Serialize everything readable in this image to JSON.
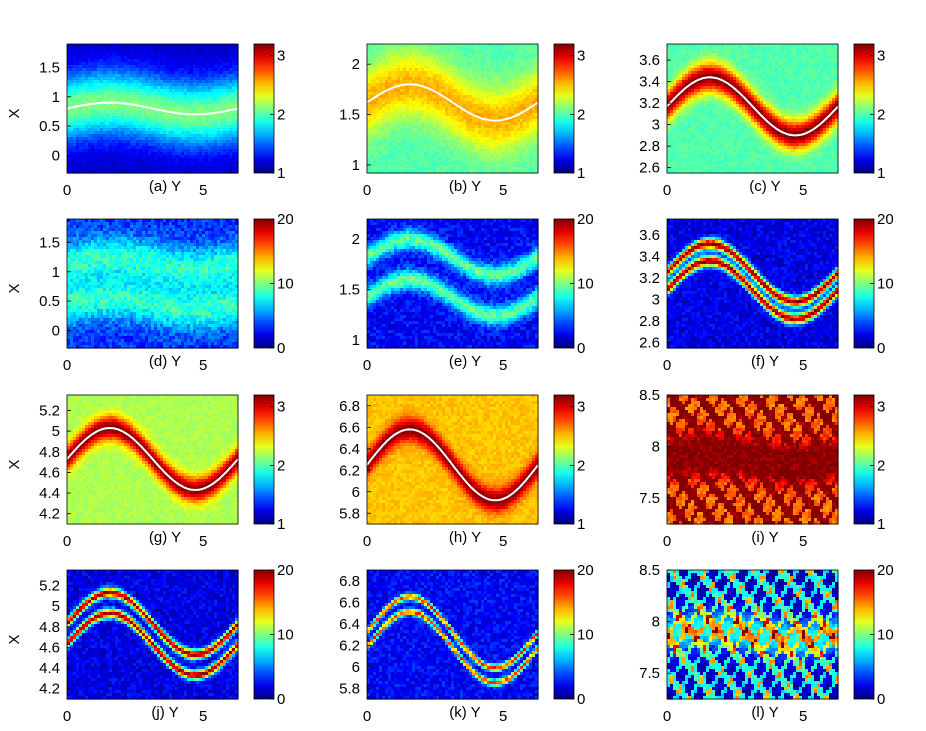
{
  "chart_data": [
    {
      "id": "a",
      "type": "heatmap",
      "caption": "(a) Y",
      "xlabel": "Y",
      "ylabel": "X",
      "x_ticks": [
        "0",
        "5"
      ],
      "xlim": [
        0,
        6.28
      ],
      "ylim": [
        -0.3,
        1.9
      ],
      "y_ticks": [
        0,
        0.5,
        1,
        1.5
      ],
      "y_tick_labels": [
        "0",
        "0.5",
        "1",
        "1.5"
      ],
      "color_range": [
        1,
        3.2
      ],
      "colorbar_ticks": [
        "1",
        "2",
        "3"
      ],
      "ridge": {
        "center": 0.8,
        "amp": 0.1,
        "width": 0.55,
        "peak": 2.1,
        "base": 1.15
      },
      "curve": true
    },
    {
      "id": "b",
      "type": "heatmap",
      "caption": "(b) Y",
      "xlabel": "Y",
      "ylabel": "",
      "x_ticks": [
        "0",
        "5"
      ],
      "xlim": [
        0,
        6.28
      ],
      "ylim": [
        0.92,
        2.2
      ],
      "y_ticks": [
        1,
        1.5,
        2
      ],
      "y_tick_labels": [
        "1",
        "1.5",
        "2"
      ],
      "color_range": [
        1,
        3.2
      ],
      "colorbar_ticks": [
        "1",
        "2",
        "3"
      ],
      "ridge": {
        "center": 1.62,
        "amp": 0.18,
        "width": 0.32,
        "peak": 2.55,
        "base": 2.0
      },
      "curve": true
    },
    {
      "id": "c",
      "type": "heatmap",
      "caption": "(c) Y",
      "xlabel": "Y",
      "ylabel": "",
      "x_ticks": [
        "0",
        "5"
      ],
      "xlim": [
        0,
        6.28
      ],
      "ylim": [
        2.55,
        3.75
      ],
      "y_ticks": [
        2.6,
        2.8,
        3,
        3.2,
        3.4,
        3.6
      ],
      "y_tick_labels": [
        "2.6",
        "2.8",
        "3",
        "3.2",
        "3.4",
        "3.6"
      ],
      "color_range": [
        1,
        3.2
      ],
      "colorbar_ticks": [
        "1",
        "2",
        "3"
      ],
      "ridge": {
        "center": 3.17,
        "amp": 0.27,
        "width": 0.14,
        "peak": 3.2,
        "base": 2.0
      },
      "curve": true
    },
    {
      "id": "d",
      "type": "heatmap",
      "caption": "(d) Y",
      "xlabel": "Y",
      "ylabel": "X",
      "x_ticks": [
        "0",
        "5"
      ],
      "xlim": [
        0,
        6.28
      ],
      "ylim": [
        -0.3,
        1.9
      ],
      "y_ticks": [
        0,
        0.5,
        1,
        1.5
      ],
      "y_tick_labels": [
        "0",
        "0.5",
        "1",
        "1.5"
      ],
      "color_range": [
        0,
        20
      ],
      "colorbar_ticks": [
        "0",
        "10",
        "20"
      ],
      "ridge": {
        "center": 0.8,
        "amp": 0.1,
        "width": 0.35,
        "peak": 8,
        "base": 3,
        "double": true,
        "sep": 0.35
      },
      "curve": false
    },
    {
      "id": "e",
      "type": "heatmap",
      "caption": "(e) Y",
      "xlabel": "Y",
      "ylabel": "",
      "x_ticks": [
        "0",
        "5"
      ],
      "xlim": [
        0,
        6.28
      ],
      "ylim": [
        0.92,
        2.2
      ],
      "y_ticks": [
        1,
        1.5,
        2
      ],
      "y_tick_labels": [
        "1",
        "1.5",
        "2"
      ],
      "color_range": [
        0,
        20
      ],
      "colorbar_ticks": [
        "0",
        "10",
        "20"
      ],
      "ridge": {
        "center": 1.62,
        "amp": 0.18,
        "width": 0.1,
        "peak": 9,
        "base": 2,
        "double": true,
        "sep": 0.2
      },
      "curve": false
    },
    {
      "id": "f",
      "type": "heatmap",
      "caption": "(f) Y",
      "xlabel": "Y",
      "ylabel": "",
      "x_ticks": [
        "0",
        "5"
      ],
      "xlim": [
        0,
        6.28
      ],
      "ylim": [
        2.55,
        3.75
      ],
      "y_ticks": [
        2.6,
        2.8,
        3,
        3.2,
        3.4,
        3.6
      ],
      "y_tick_labels": [
        "2.6",
        "2.8",
        "3",
        "3.2",
        "3.4",
        "3.6"
      ],
      "color_range": [
        0,
        20
      ],
      "colorbar_ticks": [
        "0",
        "10",
        "20"
      ],
      "ridge": {
        "center": 3.17,
        "amp": 0.27,
        "width": 0.05,
        "peak": 19,
        "base": 1.5,
        "double": true,
        "sep": 0.08
      },
      "curve": false
    },
    {
      "id": "g",
      "type": "heatmap",
      "caption": "(g) Y",
      "xlabel": "Y",
      "ylabel": "X",
      "x_ticks": [
        "0",
        "5"
      ],
      "xlim": [
        0,
        6.28
      ],
      "ylim": [
        4.1,
        5.35
      ],
      "y_ticks": [
        4.2,
        4.4,
        4.6,
        4.8,
        5,
        5.2
      ],
      "y_tick_labels": [
        "4.2",
        "4.4",
        "4.6",
        "4.8",
        "5",
        "5.2"
      ],
      "color_range": [
        1,
        3.2
      ],
      "colorbar_ticks": [
        "1",
        "2",
        "3"
      ],
      "ridge": {
        "center": 4.73,
        "amp": 0.3,
        "width": 0.12,
        "peak": 3.2,
        "base": 2.2
      },
      "curve": true
    },
    {
      "id": "h",
      "type": "heatmap",
      "caption": "(h) Y",
      "xlabel": "Y",
      "ylabel": "",
      "x_ticks": [
        "0",
        "5"
      ],
      "xlim": [
        0,
        6.28
      ],
      "ylim": [
        5.7,
        6.9
      ],
      "y_ticks": [
        5.8,
        6,
        6.2,
        6.4,
        6.6,
        6.8
      ],
      "y_tick_labels": [
        "5.8",
        "6",
        "6.2",
        "6.4",
        "6.6",
        "6.8"
      ],
      "color_range": [
        1,
        3.2
      ],
      "colorbar_ticks": [
        "1",
        "2",
        "3"
      ],
      "ridge": {
        "center": 6.25,
        "amp": 0.33,
        "width": 0.11,
        "peak": 3.2,
        "base": 2.5
      },
      "curve": true
    },
    {
      "id": "i",
      "type": "heatmap",
      "caption": "(i) Y",
      "xlabel": "Y",
      "ylabel": "",
      "x_ticks": [
        "0",
        "5"
      ],
      "xlim": [
        0,
        6.28
      ],
      "ylim": [
        7.25,
        8.5
      ],
      "y_ticks": [
        7.5,
        8,
        8.5
      ],
      "y_tick_labels": [
        "7.5",
        "8",
        "8.5"
      ],
      "color_range": [
        1,
        3.2
      ],
      "colorbar_ticks": [
        "1",
        "2",
        "3"
      ],
      "ridge": {
        "center": 7.88,
        "amp": 0.05,
        "width": 0.12,
        "peak": 3.2,
        "base": 2.8,
        "chaotic": true
      },
      "curve": false
    },
    {
      "id": "j",
      "type": "heatmap",
      "caption": "(j) Y",
      "xlabel": "Y",
      "ylabel": "X",
      "x_ticks": [
        "0",
        "5"
      ],
      "xlim": [
        0,
        6.28
      ],
      "ylim": [
        4.1,
        5.35
      ],
      "y_ticks": [
        4.2,
        4.4,
        4.6,
        4.8,
        5,
        5.2
      ],
      "y_tick_labels": [
        "4.2",
        "4.4",
        "4.6",
        "4.8",
        "5",
        "5.2"
      ],
      "color_range": [
        0,
        20
      ],
      "colorbar_ticks": [
        "0",
        "10",
        "20"
      ],
      "ridge": {
        "center": 4.73,
        "amp": 0.3,
        "width": 0.045,
        "peak": 19,
        "base": 1.5,
        "double": true,
        "sep": 0.1
      },
      "curve": false
    },
    {
      "id": "k",
      "type": "heatmap",
      "caption": "(k) Y",
      "xlabel": "Y",
      "ylabel": "",
      "x_ticks": [
        "0",
        "5"
      ],
      "xlim": [
        0,
        6.28
      ],
      "ylim": [
        5.7,
        6.9
      ],
      "y_ticks": [
        5.8,
        6,
        6.2,
        6.4,
        6.6,
        6.8
      ],
      "y_tick_labels": [
        "5.8",
        "6",
        "6.2",
        "6.4",
        "6.6",
        "6.8"
      ],
      "color_range": [
        0,
        20
      ],
      "colorbar_ticks": [
        "0",
        "10",
        "20"
      ],
      "ridge": {
        "center": 6.25,
        "amp": 0.33,
        "width": 0.03,
        "peak": 16,
        "base": 2,
        "double": true,
        "sep": 0.07
      },
      "curve": false
    },
    {
      "id": "l",
      "type": "heatmap",
      "caption": "(l) Y",
      "xlabel": "Y",
      "ylabel": "",
      "x_ticks": [
        "0",
        "5"
      ],
      "xlim": [
        0,
        6.28
      ],
      "ylim": [
        7.25,
        8.5
      ],
      "y_ticks": [
        7.5,
        8,
        8.5
      ],
      "y_tick_labels": [
        "7.5",
        "8",
        "8.5"
      ],
      "color_range": [
        0,
        20
      ],
      "colorbar_ticks": [
        "0",
        "10",
        "20"
      ],
      "ridge": {
        "center": 7.88,
        "amp": 0.05,
        "width": 0.05,
        "peak": 12,
        "base": 2,
        "chaotic": true
      },
      "curve": false
    }
  ],
  "colormap": "jet",
  "curve_color": "#ffffff"
}
